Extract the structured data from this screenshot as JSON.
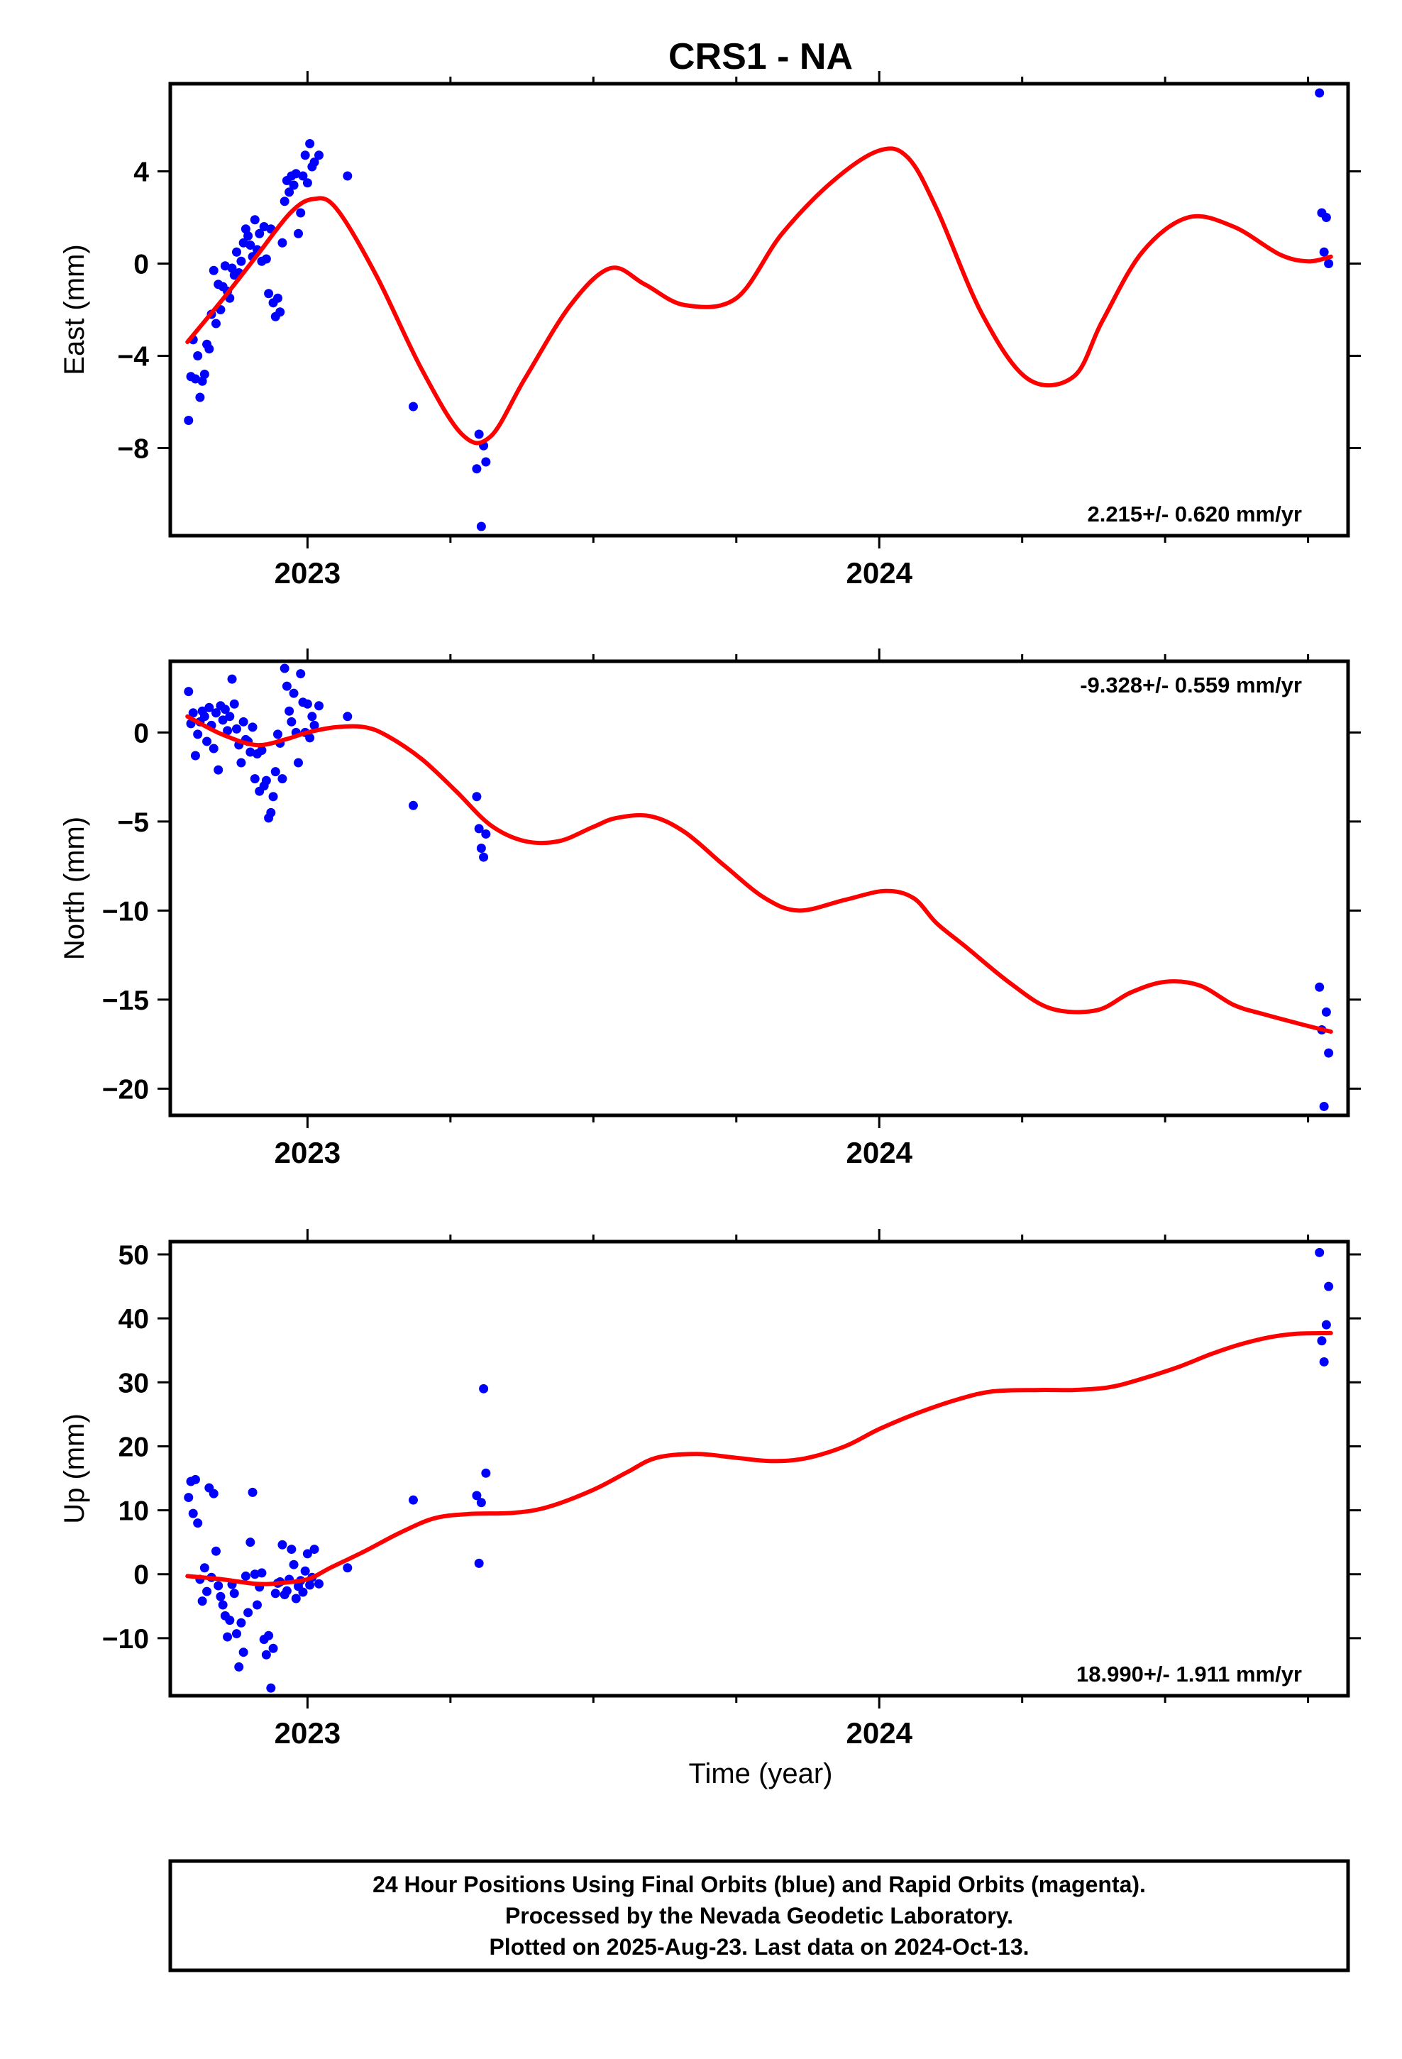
{
  "title": "CRS1 - NA",
  "xlabel": "Time (year)",
  "footer": {
    "line1": "24 Hour Positions Using Final Orbits (blue) and Rapid Orbits (magenta).",
    "line2": "Processed by the Nevada Geodetic Laboratory.",
    "line3": "Plotted on 2025-Aug-23. Last data on 2024-Oct-13."
  },
  "colors": {
    "points": "#0000ff",
    "fit": "#ff0000",
    "axes": "#000000"
  },
  "chart_data": [
    {
      "type": "scatter",
      "ylabel": "East (mm)",
      "rate_text": "2.215+/- 0.620 mm/yr",
      "rate_position": "bottom-right",
      "xlim": [
        2022.76,
        2024.82
      ],
      "ylim": [
        -11.8,
        7.8
      ],
      "yticks": [
        -8,
        -4,
        0,
        4
      ],
      "xticks_major": [
        2023,
        2024
      ],
      "points_x": [
        2022.792,
        2022.796,
        2022.8,
        2022.804,
        2022.808,
        2022.812,
        2022.816,
        2022.82,
        2022.824,
        2022.828,
        2022.832,
        2022.836,
        2022.84,
        2022.844,
        2022.848,
        2022.852,
        2022.856,
        2022.86,
        2022.864,
        2022.868,
        2022.872,
        2022.876,
        2022.88,
        2022.884,
        2022.888,
        2022.892,
        2022.896,
        2022.9,
        2022.904,
        2022.908,
        2022.912,
        2022.916,
        2022.92,
        2022.924,
        2022.928,
        2022.932,
        2022.936,
        2022.94,
        2022.944,
        2022.948,
        2022.952,
        2022.956,
        2022.96,
        2022.964,
        2022.968,
        2022.972,
        2022.976,
        2022.98,
        2022.984,
        2022.988,
        2022.992,
        2022.996,
        2023.0,
        2023.004,
        2023.008,
        2023.012,
        2023.02,
        2023.07,
        2023.185,
        2023.296,
        2023.3,
        2023.304,
        2023.308,
        2023.312,
        2024.77,
        2024.774,
        2024.778,
        2024.782,
        2024.786
      ],
      "points_y": [
        -6.8,
        -4.9,
        -3.3,
        -5.0,
        -4.0,
        -5.8,
        -5.1,
        -4.8,
        -3.5,
        -3.7,
        -2.2,
        -0.3,
        -2.6,
        -0.9,
        -2.0,
        -1.0,
        -0.1,
        -1.2,
        -1.5,
        -0.2,
        -0.5,
        0.5,
        -0.4,
        0.1,
        0.9,
        1.5,
        1.2,
        0.8,
        0.3,
        1.9,
        0.6,
        1.3,
        0.1,
        1.6,
        0.2,
        -1.3,
        1.5,
        -1.7,
        -2.3,
        -1.5,
        -2.1,
        0.9,
        2.7,
        3.6,
        3.1,
        3.8,
        3.4,
        3.9,
        1.3,
        2.2,
        3.8,
        4.7,
        3.5,
        5.2,
        4.2,
        4.4,
        4.7,
        3.8,
        -6.2,
        -8.9,
        -7.4,
        -11.4,
        -7.9,
        -8.6,
        7.4,
        2.2,
        0.5,
        2.0,
        0.0
      ],
      "fit_x": [
        2022.79,
        2022.85,
        2022.91,
        2022.97,
        2023.01,
        2023.05,
        2023.12,
        2023.2,
        2023.27,
        2023.32,
        2023.38,
        2023.46,
        2023.53,
        2023.59,
        2023.66,
        2023.75,
        2023.83,
        2023.92,
        2024.0,
        2024.05,
        2024.1,
        2024.18,
        2024.26,
        2024.34,
        2024.39,
        2024.46,
        2024.54,
        2024.62,
        2024.7,
        2024.75,
        2024.79
      ],
      "fit_y": [
        -3.4,
        -1.6,
        0.3,
        2.2,
        2.8,
        2.4,
        -0.5,
        -4.6,
        -7.4,
        -7.5,
        -5.0,
        -1.8,
        -0.2,
        -0.9,
        -1.8,
        -1.5,
        1.3,
        3.6,
        4.9,
        4.6,
        2.4,
        -2.2,
        -5.0,
        -4.9,
        -2.5,
        0.5,
        2.0,
        1.6,
        0.4,
        0.1,
        0.3
      ]
    },
    {
      "type": "scatter",
      "ylabel": "North (mm)",
      "rate_text": "-9.328+/- 0.559 mm/yr",
      "rate_position": "top-right",
      "xlim": [
        2022.76,
        2024.82
      ],
      "ylim": [
        -21.5,
        4.0
      ],
      "yticks": [
        -20,
        -15,
        -10,
        -5,
        0
      ],
      "xticks_major": [
        2023,
        2024
      ],
      "points_x": [
        2022.792,
        2022.796,
        2022.8,
        2022.804,
        2022.808,
        2022.812,
        2022.816,
        2022.82,
        2022.824,
        2022.828,
        2022.832,
        2022.836,
        2022.84,
        2022.844,
        2022.848,
        2022.852,
        2022.856,
        2022.86,
        2022.864,
        2022.868,
        2022.872,
        2022.876,
        2022.88,
        2022.884,
        2022.888,
        2022.892,
        2022.896,
        2022.9,
        2022.904,
        2022.908,
        2022.912,
        2022.916,
        2022.92,
        2022.924,
        2022.928,
        2022.932,
        2022.936,
        2022.94,
        2022.944,
        2022.948,
        2022.952,
        2022.956,
        2022.96,
        2022.964,
        2022.968,
        2022.972,
        2022.976,
        2022.98,
        2022.984,
        2022.988,
        2022.992,
        2022.996,
        2023.0,
        2023.004,
        2023.008,
        2023.012,
        2023.02,
        2023.07,
        2023.185,
        2023.296,
        2023.3,
        2023.304,
        2023.308,
        2023.312,
        2024.77,
        2024.774,
        2024.778,
        2024.782,
        2024.786
      ],
      "points_y": [
        2.3,
        0.5,
        1.1,
        -1.3,
        -0.1,
        0.6,
        1.2,
        0.9,
        -0.5,
        1.4,
        0.4,
        -0.9,
        1.1,
        -2.1,
        1.5,
        0.7,
        1.3,
        0.1,
        0.9,
        3.0,
        1.6,
        0.2,
        -0.7,
        -1.7,
        0.6,
        -0.4,
        -0.5,
        -1.1,
        0.3,
        -2.6,
        -1.2,
        -3.3,
        -1.0,
        -3.0,
        -2.7,
        -4.8,
        -4.5,
        -3.6,
        -2.2,
        -0.1,
        -0.6,
        -2.6,
        3.6,
        2.6,
        1.2,
        0.6,
        2.2,
        0.0,
        -1.7,
        3.3,
        1.7,
        0.0,
        1.6,
        -0.3,
        0.9,
        0.4,
        1.5,
        0.9,
        -4.1,
        -3.6,
        -5.4,
        -6.5,
        -7.0,
        -5.7,
        -14.3,
        -16.7,
        -21.0,
        -15.7,
        -18.0
      ],
      "fit_x": [
        2022.79,
        2022.85,
        2022.91,
        2022.96,
        2023.0,
        2023.05,
        2023.1,
        2023.14,
        2023.2,
        2023.26,
        2023.32,
        2023.38,
        2023.44,
        2023.5,
        2023.54,
        2023.6,
        2023.66,
        2023.73,
        2023.8,
        2023.86,
        2023.94,
        2024.01,
        2024.06,
        2024.1,
        2024.15,
        2024.23,
        2024.3,
        2024.38,
        2024.44,
        2024.5,
        2024.56,
        2024.62,
        2024.67,
        2024.74,
        2024.79
      ],
      "fit_y": [
        0.9,
        -0.1,
        -0.7,
        -0.4,
        0.0,
        0.3,
        0.3,
        -0.2,
        -1.5,
        -3.3,
        -5.2,
        -6.1,
        -6.1,
        -5.3,
        -4.8,
        -4.7,
        -5.6,
        -7.5,
        -9.3,
        -10.0,
        -9.4,
        -8.9,
        -9.3,
        -10.7,
        -12.0,
        -14.1,
        -15.5,
        -15.6,
        -14.6,
        -14.0,
        -14.2,
        -15.3,
        -15.8,
        -16.4,
        -16.8
      ]
    },
    {
      "type": "scatter",
      "ylabel": "Up (mm)",
      "rate_text": "18.990+/- 1.911 mm/yr",
      "rate_position": "bottom-right",
      "xlim": [
        2022.76,
        2024.82
      ],
      "ylim": [
        -19.0,
        52.0
      ],
      "yticks": [
        -10,
        0,
        10,
        20,
        30,
        40,
        50
      ],
      "xticks_major": [
        2023,
        2024
      ],
      "points_x": [
        2022.792,
        2022.796,
        2022.8,
        2022.804,
        2022.808,
        2022.812,
        2022.816,
        2022.82,
        2022.824,
        2022.828,
        2022.832,
        2022.836,
        2022.84,
        2022.844,
        2022.848,
        2022.852,
        2022.856,
        2022.86,
        2022.864,
        2022.868,
        2022.872,
        2022.876,
        2022.88,
        2022.884,
        2022.888,
        2022.892,
        2022.896,
        2022.9,
        2022.904,
        2022.908,
        2022.912,
        2022.916,
        2022.92,
        2022.924,
        2022.928,
        2022.932,
        2022.936,
        2022.94,
        2022.944,
        2022.948,
        2022.952,
        2022.956,
        2022.96,
        2022.964,
        2022.968,
        2022.972,
        2022.976,
        2022.98,
        2022.984,
        2022.988,
        2022.992,
        2022.996,
        2023.0,
        2023.004,
        2023.008,
        2023.012,
        2023.02,
        2023.07,
        2023.185,
        2023.296,
        2023.3,
        2023.304,
        2023.308,
        2023.312,
        2024.77,
        2024.774,
        2024.778,
        2024.782,
        2024.786
      ],
      "points_y": [
        12.0,
        14.5,
        9.5,
        14.8,
        8.0,
        -0.8,
        -4.2,
        1.0,
        -2.7,
        13.5,
        -0.5,
        12.6,
        3.6,
        -1.8,
        -3.5,
        -4.8,
        -6.5,
        -9.8,
        -7.2,
        -1.6,
        -3.0,
        -9.3,
        -14.5,
        -7.6,
        -12.2,
        -0.3,
        -6.0,
        5.0,
        12.8,
        0.0,
        -4.8,
        -2.0,
        0.2,
        -10.2,
        -12.6,
        -9.6,
        -17.8,
        -11.6,
        -3.0,
        -1.4,
        -1.2,
        4.6,
        -3.2,
        -2.6,
        -0.8,
        3.9,
        1.5,
        -3.8,
        -1.9,
        -1.0,
        -2.8,
        0.5,
        3.2,
        -1.7,
        -0.5,
        3.9,
        -1.5,
        1.0,
        11.6,
        12.3,
        1.7,
        11.2,
        29.0,
        15.8,
        50.3,
        36.5,
        33.2,
        39.0,
        45.0
      ],
      "fit_x": [
        2022.79,
        2022.85,
        2022.91,
        2022.95,
        2023.0,
        2023.04,
        2023.1,
        2023.16,
        2023.22,
        2023.28,
        2023.36,
        2023.42,
        2023.5,
        2023.56,
        2023.61,
        2023.68,
        2023.75,
        2023.81,
        2023.87,
        2023.94,
        2024.0,
        2024.07,
        2024.14,
        2024.2,
        2024.28,
        2024.34,
        2024.4,
        2024.45,
        2024.52,
        2024.58,
        2024.63,
        2024.68,
        2024.73,
        2024.79
      ],
      "fit_y": [
        -0.3,
        -0.8,
        -1.5,
        -1.4,
        -0.8,
        1.0,
        3.6,
        6.4,
        8.7,
        9.4,
        9.6,
        10.5,
        13.2,
        16.0,
        18.2,
        18.8,
        18.2,
        17.7,
        18.1,
        20.0,
        22.7,
        25.3,
        27.4,
        28.6,
        28.8,
        28.8,
        29.2,
        30.3,
        32.3,
        34.4,
        35.9,
        37.0,
        37.6,
        37.7
      ]
    }
  ]
}
